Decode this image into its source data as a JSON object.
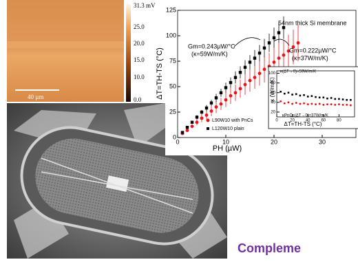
{
  "afm_image": {
    "colorbar_labels": [
      "31.3 mV",
      "25.0",
      "20.0",
      "15.0",
      "10.0",
      "0.0"
    ],
    "scale_label": "40 µm"
  },
  "chart_data": [
    {
      "type": "scatter",
      "xlabel": "PH (µW)",
      "ylabel": "ΔT=TH-TS (°C)",
      "xlim": [
        0,
        37
      ],
      "ylim": [
        0,
        125
      ],
      "xticks": [
        0,
        10,
        20,
        30
      ],
      "yticks": [
        0,
        25,
        50,
        75,
        100,
        125
      ],
      "annotations": [
        "54nm thick Si membrane",
        "Gm=0.243µW/°C",
        "(κ=59W/m/K)",
        "Gm=0.222µW/°C",
        "(κ=37W/m/K)"
      ],
      "legend": "lower right",
      "series": [
        {
          "name": "L90W10 with PnCs",
          "color": "#e8141c",
          "marker": "circle",
          "x": [
            1,
            2,
            3,
            4,
            5,
            6,
            7,
            8,
            9,
            10,
            11,
            12,
            13,
            14,
            15,
            16,
            17,
            18,
            19,
            20,
            21,
            22,
            23,
            24,
            25
          ],
          "values": [
            4,
            7,
            11,
            15,
            19,
            22,
            26,
            30,
            33,
            37,
            41,
            44,
            48,
            52,
            56,
            59,
            63,
            67,
            70,
            74,
            78,
            81,
            85,
            89,
            93
          ],
          "errors": [
            1,
            1,
            2,
            3,
            4,
            4,
            5,
            6,
            6,
            7,
            8,
            8,
            9,
            10,
            11,
            11,
            12,
            13,
            13,
            14,
            15,
            15,
            16,
            17,
            18
          ]
        },
        {
          "name": "L120W10 plain",
          "color": "#000000",
          "marker": "square",
          "x": [
            1,
            2,
            3,
            4,
            5,
            6,
            7,
            8,
            9,
            10,
            11,
            12,
            13,
            14,
            15,
            16,
            17,
            18,
            19,
            20,
            21,
            22
          ],
          "values": [
            5,
            10,
            15,
            20,
            25,
            29,
            34,
            39,
            44,
            49,
            54,
            59,
            64,
            69,
            74,
            78,
            83,
            88,
            93,
            98,
            103,
            108
          ],
          "errors": [
            0,
            1,
            1,
            2,
            2,
            3,
            3,
            4,
            4,
            5,
            5,
            6,
            6,
            7,
            7,
            8,
            8,
            9,
            9,
            10,
            10,
            11
          ]
        }
      ]
    },
    {
      "type": "scatter",
      "xlabel": "ΔT=TH-TS (°C)",
      "ylabel": "κ (W/m/K)",
      "xlim": [
        0,
        100
      ],
      "ylim": [
        10,
        105
      ],
      "xticks": [
        0,
        20,
        40,
        60,
        80
      ],
      "yticks": [
        20,
        40,
        60,
        80,
        100
      ],
      "annotations": [
        "κ(ΔT→0)=59W/m/K",
        "κPnCs(ΔT→0)=37W/m/K"
      ],
      "series": [
        {
          "color": "#000000",
          "marker": "square",
          "x": [
            5,
            10,
            15,
            20,
            25,
            30,
            35,
            40,
            45,
            50,
            55,
            60,
            65,
            70,
            75,
            80,
            85,
            90,
            95
          ],
          "values": [
            62,
            58,
            60,
            56,
            57,
            54,
            55,
            52,
            53,
            51,
            50,
            50,
            48,
            49,
            47,
            47,
            46,
            45,
            45
          ]
        },
        {
          "color": "#e8141c",
          "marker": "circle",
          "x": [
            5,
            10,
            15,
            20,
            25,
            30,
            35,
            40,
            45,
            50,
            55,
            60,
            65,
            70,
            75,
            80,
            85,
            90,
            95
          ],
          "values": [
            42,
            38,
            40,
            37,
            39,
            37,
            38,
            36,
            37,
            36,
            37,
            35,
            36,
            36,
            35,
            36,
            35,
            35,
            34
          ]
        }
      ]
    }
  ],
  "footer_text": "Compleme"
}
